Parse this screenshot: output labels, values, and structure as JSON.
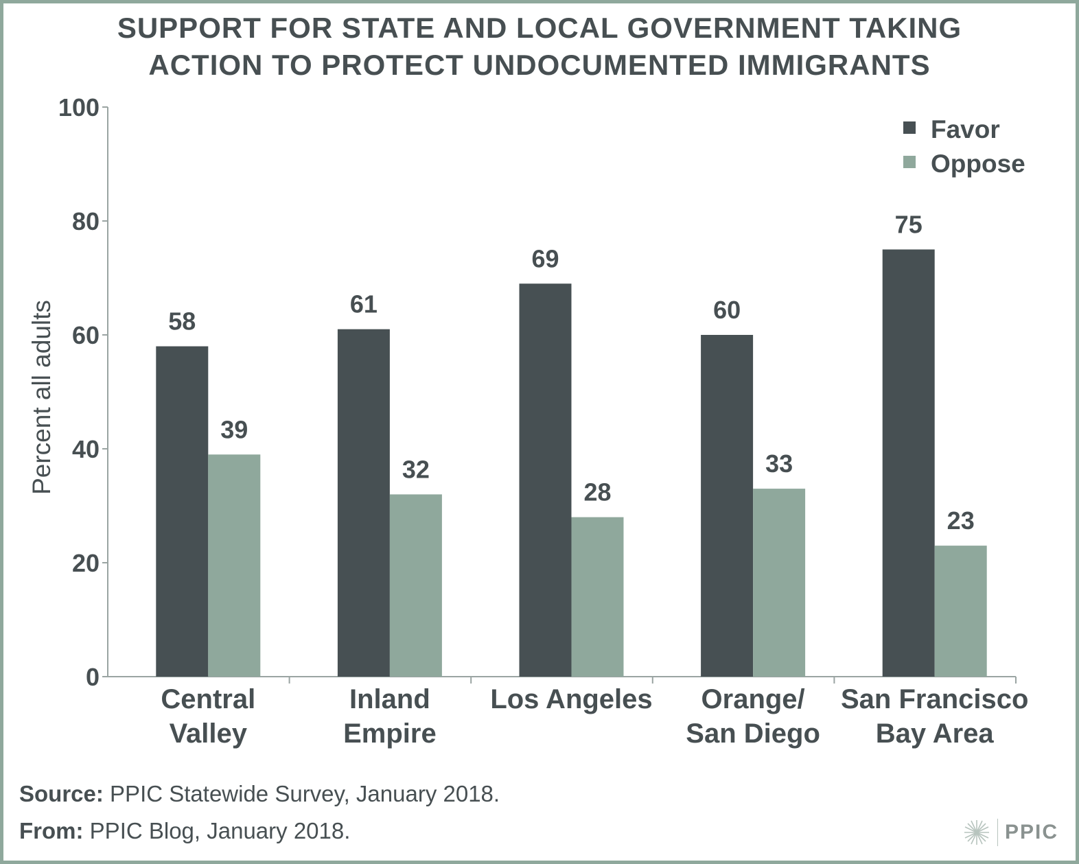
{
  "chart_data": {
    "type": "bar",
    "title": [
      "SUPPORT FOR STATE AND LOCAL GOVERNMENT TAKING",
      "ACTION TO PROTECT UNDOCUMENTED IMMIGRANTS"
    ],
    "ylabel": "Percent all adults",
    "ylim": [
      0,
      100
    ],
    "yticks": [
      "0",
      "20",
      "40",
      "60",
      "80",
      "100"
    ],
    "categories": [
      [
        "Central",
        "Valley"
      ],
      [
        "Inland",
        "Empire"
      ],
      [
        "Los Angeles"
      ],
      [
        "Orange/",
        "San Diego"
      ],
      [
        "San Francisco",
        "Bay Area"
      ]
    ],
    "series": [
      {
        "name": "Favor",
        "color": "#475053",
        "values": [
          58,
          61,
          69,
          60,
          75
        ]
      },
      {
        "name": "Oppose",
        "color": "#8fa89c",
        "values": [
          39,
          32,
          28,
          33,
          23
        ]
      }
    ],
    "legend_position": "top-right",
    "grid": false
  },
  "footer": {
    "source_label": "Source:",
    "source_text": "PPIC Statewide Survey, January 2018.",
    "from_label": "From:",
    "from_text": "PPIC Blog, January 2018."
  },
  "logo": {
    "text": "PPIC",
    "icon": "starburst-icon"
  }
}
